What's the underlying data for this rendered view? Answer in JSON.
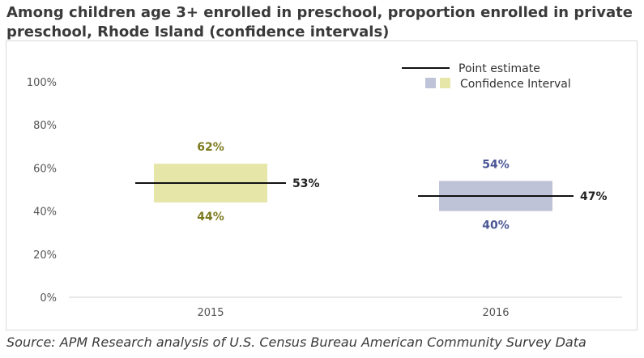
{
  "chart_data": {
    "type": "interval",
    "title": "Among children age 3+ enrolled in preschool, proportion enrolled in private preschool, Rhode Island (confidence intervals)",
    "source": "Source: APM Research analysis of U.S. Census Bureau American Community Survey Data",
    "categories": [
      "2015",
      "2016"
    ],
    "point_estimate": [
      53,
      47
    ],
    "ci_low": [
      44,
      40
    ],
    "ci_high": [
      62,
      54
    ],
    "point_labels": [
      "53%",
      "47%"
    ],
    "low_labels": [
      "44%",
      "40%"
    ],
    "high_labels": [
      "62%",
      "54%"
    ],
    "colors": [
      "#e6e6a9",
      "#bfc3d8"
    ],
    "label_colors": [
      "#7d7a1e",
      "#4a5694"
    ],
    "ylim": [
      0,
      100
    ],
    "yticks": [
      0,
      20,
      40,
      60,
      80,
      100
    ],
    "ytick_labels": [
      "0%",
      "20%",
      "40%",
      "60%",
      "80%",
      "100%"
    ],
    "legend": {
      "position": "top-right",
      "point_estimate": "Point estimate",
      "confidence_interval": "Confidence Interval"
    }
  }
}
